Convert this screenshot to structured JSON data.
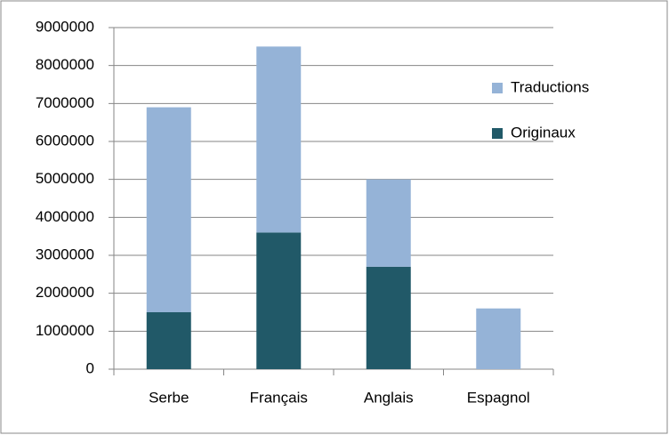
{
  "chart_data": {
    "type": "stacked-bar",
    "categories": [
      "Serbe",
      "Français",
      "Anglais",
      "Espagnol"
    ],
    "series": [
      {
        "name": "Originaux",
        "color": "#215968",
        "values": [
          1500000,
          3600000,
          2700000,
          0
        ]
      },
      {
        "name": "Traductions",
        "color": "#95b3d7",
        "values": [
          5400000,
          4900000,
          2300000,
          1600000
        ]
      }
    ],
    "ylim": [
      0,
      9000000
    ],
    "yticks": [
      0,
      1000000,
      2000000,
      3000000,
      4000000,
      5000000,
      6000000,
      7000000,
      8000000,
      9000000
    ],
    "grid": true,
    "legend": "right"
  }
}
